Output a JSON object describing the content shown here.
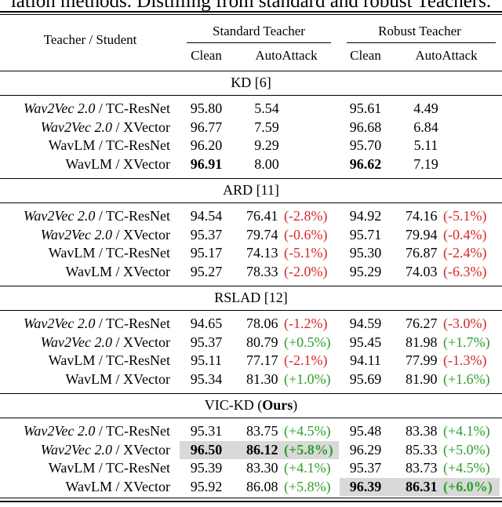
{
  "caption": "lation methods. Distilling from standard and robust Teachers.",
  "header": {
    "teacher_student": "Teacher / Student",
    "standard_teacher": "Standard Teacher",
    "robust_teacher": "Robust Teacher",
    "clean": "Clean",
    "autoattack": "AutoAttack"
  },
  "sections": [
    {
      "title": "KD [6]",
      "rows": [
        {
          "teacher": "Wav2Vec 2.0",
          "teacher_italic": true,
          "student": "TC-ResNet",
          "std_clean": "95.80",
          "std_aa": "5.54",
          "std_delta": "",
          "rob_clean": "95.61",
          "rob_aa": "4.49",
          "rob_delta": ""
        },
        {
          "teacher": "Wav2Vec 2.0",
          "teacher_italic": true,
          "student": "XVector",
          "std_clean": "96.77",
          "std_aa": "7.59",
          "std_delta": "",
          "rob_clean": "96.68",
          "rob_aa": "6.84",
          "rob_delta": ""
        },
        {
          "teacher": "WavLM",
          "teacher_italic": false,
          "student": "TC-ResNet",
          "std_clean": "96.20",
          "std_aa": "9.29",
          "std_delta": "",
          "rob_clean": "95.70",
          "rob_aa": "5.11",
          "rob_delta": ""
        },
        {
          "teacher": "WavLM",
          "teacher_italic": false,
          "student": "XVector",
          "std_clean": "96.91",
          "std_clean_bold": true,
          "std_aa": "8.00",
          "std_delta": "",
          "rob_clean": "96.62",
          "rob_clean_bold": true,
          "rob_aa": "7.19",
          "rob_delta": ""
        }
      ]
    },
    {
      "title": "ARD [11]",
      "rows": [
        {
          "teacher": "Wav2Vec 2.0",
          "teacher_italic": true,
          "student": "TC-ResNet",
          "std_clean": "94.54",
          "std_aa": "76.41",
          "std_delta": "(-2.8%)",
          "std_delta_color": "red",
          "rob_clean": "94.92",
          "rob_aa": "74.16",
          "rob_delta": "(-5.1%)",
          "rob_delta_color": "red"
        },
        {
          "teacher": "Wav2Vec 2.0",
          "teacher_italic": true,
          "student": "XVector",
          "std_clean": "95.37",
          "std_aa": "79.74",
          "std_delta": "(-0.6%)",
          "std_delta_color": "red",
          "rob_clean": "95.71",
          "rob_aa": "79.94",
          "rob_delta": "(-0.4%)",
          "rob_delta_color": "red"
        },
        {
          "teacher": "WavLM",
          "teacher_italic": false,
          "student": "TC-ResNet",
          "std_clean": "95.17",
          "std_aa": "74.13",
          "std_delta": "(-5.1%)",
          "std_delta_color": "red",
          "rob_clean": "95.30",
          "rob_aa": "76.87",
          "rob_delta": "(-2.4%)",
          "rob_delta_color": "red"
        },
        {
          "teacher": "WavLM",
          "teacher_italic": false,
          "student": "XVector",
          "std_clean": "95.27",
          "std_aa": "78.33",
          "std_delta": "(-2.0%)",
          "std_delta_color": "red",
          "rob_clean": "95.29",
          "rob_aa": "74.03",
          "rob_delta": "(-6.3%)",
          "rob_delta_color": "red"
        }
      ]
    },
    {
      "title": "RSLAD [12]",
      "rows": [
        {
          "teacher": "Wav2Vec 2.0",
          "teacher_italic": true,
          "student": "TC-ResNet",
          "std_clean": "94.65",
          "std_aa": "78.06",
          "std_delta": "(-1.2%)",
          "std_delta_color": "red",
          "rob_clean": "94.59",
          "rob_aa": "76.27",
          "rob_delta": "(-3.0%)",
          "rob_delta_color": "red"
        },
        {
          "teacher": "Wav2Vec 2.0",
          "teacher_italic": true,
          "student": "XVector",
          "std_clean": "95.37",
          "std_aa": "80.79",
          "std_delta": "(+0.5%)",
          "std_delta_color": "green",
          "rob_clean": "95.45",
          "rob_aa": "81.98",
          "rob_delta": "(+1.7%)",
          "rob_delta_color": "green"
        },
        {
          "teacher": "WavLM",
          "teacher_italic": false,
          "student": "TC-ResNet",
          "std_clean": "95.11",
          "std_aa": "77.17",
          "std_delta": "(-2.1%)",
          "std_delta_color": "red",
          "rob_clean": "94.11",
          "rob_aa": "77.99",
          "rob_delta": "(-1.3%)",
          "rob_delta_color": "red"
        },
        {
          "teacher": "WavLM",
          "teacher_italic": false,
          "student": "XVector",
          "std_clean": "95.34",
          "std_aa": "81.30",
          "std_delta": "(+1.0%)",
          "std_delta_color": "green",
          "rob_clean": "95.69",
          "rob_aa": "81.90",
          "rob_delta": "(+1.6%)",
          "rob_delta_color": "green"
        }
      ]
    },
    {
      "title": "VIC-KD (",
      "title_bold": "Ours",
      "title_end": ")",
      "rows": [
        {
          "teacher": "Wav2Vec 2.0",
          "teacher_italic": true,
          "student": "TC-ResNet",
          "std_clean": "95.31",
          "std_aa": "83.75",
          "std_delta": "(+4.5%)",
          "std_delta_color": "green",
          "rob_clean": "95.48",
          "rob_aa": "83.38",
          "rob_delta": "(+4.1%)",
          "rob_delta_color": "green"
        },
        {
          "teacher": "Wav2Vec 2.0",
          "teacher_italic": true,
          "student": "XVector",
          "std_clean": "96.50",
          "std_clean_bold": true,
          "std_aa": "86.12",
          "std_aa_bold": true,
          "std_delta": "(+5.8%)",
          "std_delta_color": "green",
          "std_highlight": true,
          "rob_clean": "96.29",
          "rob_aa": "85.33",
          "rob_delta": "(+5.0%)",
          "rob_delta_color": "green"
        },
        {
          "teacher": "WavLM",
          "teacher_italic": false,
          "student": "TC-ResNet",
          "std_clean": "95.39",
          "std_aa": "83.30",
          "std_delta": "(+4.1%)",
          "std_delta_color": "green",
          "rob_clean": "95.37",
          "rob_aa": "83.73",
          "rob_delta": "(+4.5%)",
          "rob_delta_color": "green"
        },
        {
          "teacher": "WavLM",
          "teacher_italic": false,
          "student": "XVector",
          "std_clean": "95.92",
          "std_aa": "86.08",
          "std_delta": "(+5.8%)",
          "std_delta_color": "green",
          "rob_clean": "96.39",
          "rob_clean_bold": true,
          "rob_aa": "86.31",
          "rob_aa_bold": true,
          "rob_delta": "(+6.0%)",
          "rob_delta_color": "green",
          "rob_highlight": true
        }
      ]
    }
  ],
  "colors": {
    "red": "#d62728",
    "green": "#2ca02c",
    "highlight": "#d9d9d9"
  }
}
